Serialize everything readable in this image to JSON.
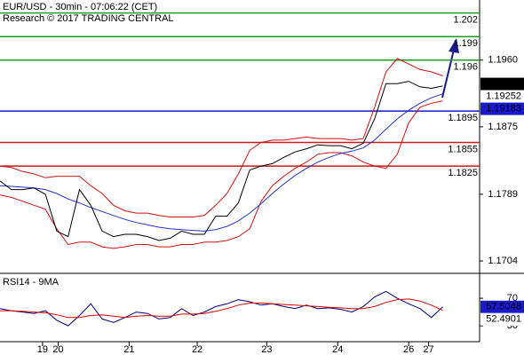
{
  "chart_data": [
    {
      "type": "line",
      "title": "EUR/USD - 30min - 07:06:22 (CET)",
      "subtitle": "Research © 2017 TRADING CENTRAL",
      "x": [
        0,
        8,
        16,
        24,
        32,
        40,
        48,
        56,
        64,
        72,
        80,
        88,
        96,
        104,
        112,
        120,
        128,
        136,
        144,
        152,
        160,
        168,
        176,
        184,
        192,
        200,
        208,
        216,
        224,
        232,
        240,
        248,
        256,
        264,
        272,
        280,
        288,
        296,
        304,
        312
      ],
      "xlim": [
        0,
        338
      ],
      "xticks": [
        {
          "value": 30,
          "label": "19"
        },
        {
          "value": 41,
          "label": "20"
        },
        {
          "value": 91,
          "label": "21"
        },
        {
          "value": 139,
          "label": "22"
        },
        {
          "value": 188,
          "label": "23"
        },
        {
          "value": 238,
          "label": "24"
        },
        {
          "value": 288,
          "label": "26"
        },
        {
          "value": 302,
          "label": "27"
        }
      ],
      "ylim": [
        1.16882,
        1.20366
      ],
      "yticks": [
        {
          "value": 1.196,
          "label": "1.1960"
        },
        1.1875,
        1.1789,
        1.1704
      ],
      "series": [
        {
          "color": "#d01010",
          "values": [
            1.1825,
            1.1823,
            1.1818,
            1.1815,
            1.181,
            1.1812,
            1.1812,
            1.1812,
            1.18,
            1.179,
            1.1775,
            1.1768,
            1.1765,
            1.1765,
            1.1762,
            1.176,
            1.176,
            1.176,
            1.1762,
            1.1775,
            1.179,
            1.1815,
            1.1845,
            1.1855,
            1.1858,
            1.1858,
            1.186,
            1.1862,
            1.186,
            1.186,
            1.186,
            1.1858,
            1.186,
            1.19,
            1.1945,
            1.1962,
            1.1955,
            1.1948,
            1.1945,
            1.194
          ]
        },
        {
          "color": "#d01010",
          "values": [
            1.1788,
            1.1785,
            1.178,
            1.1775,
            1.177,
            1.1745,
            1.1725,
            1.1728,
            1.1728,
            1.1722,
            1.172,
            1.1722,
            1.1725,
            1.1725,
            1.1722,
            1.1722,
            1.1725,
            1.1725,
            1.1728,
            1.1728,
            1.173,
            1.1735,
            1.1745,
            1.178,
            1.18,
            1.1812,
            1.1822,
            1.183,
            1.184,
            1.1842,
            1.1842,
            1.1838,
            1.183,
            1.1825,
            1.1822,
            1.184,
            1.188,
            1.19,
            1.1905,
            1.1908
          ]
        },
        {
          "color": "#2233cc",
          "values": [
            1.18,
            1.1799,
            1.1798,
            1.1797,
            1.1795,
            1.179,
            1.1783,
            1.1778,
            1.1772,
            1.1767,
            1.1762,
            1.1757,
            1.1753,
            1.175,
            1.1747,
            1.1745,
            1.1744,
            1.1743,
            1.1742,
            1.1744,
            1.1748,
            1.1755,
            1.1765,
            1.1777,
            1.179,
            1.1802,
            1.1813,
            1.1822,
            1.183,
            1.1836,
            1.1841,
            1.1844,
            1.1848,
            1.1858,
            1.1872,
            1.1885,
            1.1896,
            1.1905,
            1.1912,
            1.1917
          ]
        },
        {
          "color": "#000000",
          "values": [
            1.1806,
            1.1795,
            1.1795,
            1.1797,
            1.1789,
            1.1742,
            1.1735,
            1.1795,
            1.1775,
            1.1742,
            1.1735,
            1.1738,
            1.1738,
            1.1735,
            1.173,
            1.1733,
            1.1742,
            1.1738,
            1.1738,
            1.1761,
            1.1761,
            1.1778,
            1.182,
            1.1825,
            1.1828,
            1.1836,
            1.1843,
            1.1847,
            1.1852,
            1.1851,
            1.1851,
            1.1847,
            1.1854,
            1.1885,
            1.193,
            1.193,
            1.1933,
            1.1926,
            1.1924,
            1.1927
          ]
        }
      ],
      "levels": [
        {
          "value": 1.202,
          "color": "#1a9a1a"
        },
        {
          "value": 1.199,
          "color": "#1a9a1a"
        },
        {
          "value": 1.196,
          "color": "#1a9a1a"
        },
        {
          "value": 1.1895,
          "color": "#1a1acc"
        },
        {
          "value": 1.1855,
          "color": "#cc1a1a"
        },
        {
          "value": 1.1825,
          "color": "#cc1a1a"
        }
      ],
      "markers": [
        {
          "value": 1.19296,
          "color": "#000000",
          "filled": true
        },
        {
          "value": 1.19252,
          "color": "#dd0000",
          "filled": false
        },
        {
          "value": 1.19183,
          "color": "#1a1acc",
          "filled": true
        }
      ]
    },
    {
      "type": "line",
      "title": "RSI14 - 9MA",
      "x": [
        0,
        8,
        16,
        24,
        32,
        40,
        48,
        56,
        64,
        72,
        80,
        88,
        96,
        104,
        112,
        120,
        128,
        136,
        144,
        152,
        160,
        168,
        176,
        184,
        192,
        200,
        208,
        216,
        224,
        232,
        240,
        248,
        256,
        264,
        272,
        280,
        288,
        296,
        304,
        312
      ],
      "xlim": [
        0,
        338
      ],
      "ylim": [
        7,
        101
      ],
      "yticks": [
        70,
        30
      ],
      "series": [
        {
          "color": "#000080",
          "values": [
            55,
            52,
            50,
            48,
            52,
            38,
            30,
            45,
            62,
            40,
            35,
            42,
            50,
            48,
            40,
            42,
            55,
            45,
            50,
            58,
            62,
            68,
            65,
            60,
            62,
            58,
            55,
            60,
            55,
            56,
            54,
            50,
            58,
            72,
            80,
            70,
            62,
            55,
            42,
            57.5
          ]
        },
        {
          "color": "#dd0000",
          "values": [
            52,
            52,
            51,
            50,
            49,
            46,
            42,
            42,
            45,
            46,
            44,
            42,
            44,
            45,
            44,
            44,
            47,
            47,
            48,
            51,
            55,
            60,
            63,
            63,
            62,
            61,
            60,
            59,
            58,
            57,
            56,
            55,
            55,
            58,
            64,
            68,
            69,
            66,
            60,
            52.5
          ]
        }
      ],
      "markers": [
        {
          "value": 57.5048,
          "color": "#1a1acc",
          "filled": true
        },
        {
          "value": 52.4901,
          "color": "#dd0000",
          "filled": false
        }
      ]
    }
  ]
}
